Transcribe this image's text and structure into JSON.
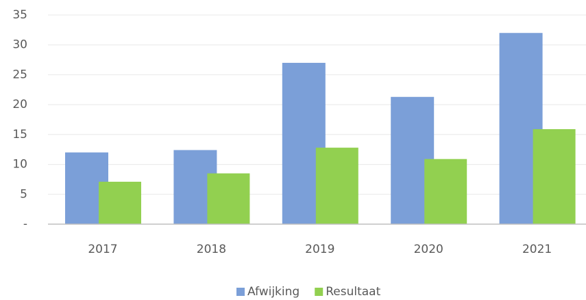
{
  "chart_data": {
    "type": "bar",
    "categories": [
      "2017",
      "2018",
      "2019",
      "2020",
      "2021"
    ],
    "series": [
      {
        "name": "Afwijking",
        "color": "#7b9fd8",
        "values": [
          12.0,
          12.4,
          27.0,
          21.3,
          32.0
        ]
      },
      {
        "name": "Resultaat",
        "color": "#92d050",
        "values": [
          7.1,
          8.5,
          12.8,
          10.9,
          15.9
        ]
      }
    ],
    "ylim": [
      0,
      35
    ],
    "yticks": [
      {
        "value": 0,
        "label": "-"
      },
      5,
      10,
      15,
      20,
      25,
      30,
      35
    ],
    "grid": true,
    "legend": "bottom"
  }
}
